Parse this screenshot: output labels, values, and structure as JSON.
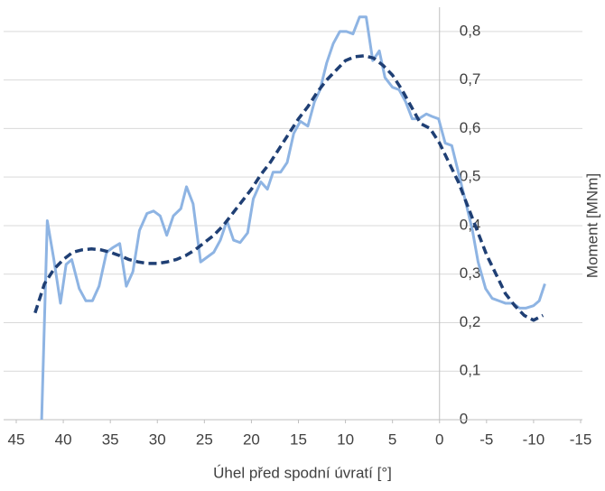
{
  "chart_data": {
    "type": "line",
    "xlabel": "Úhel před spodní úvratí [°]",
    "ylabel": "Moment [MNm]",
    "xlim": [
      45,
      -15
    ],
    "ylim": [
      0,
      0.85
    ],
    "xticks": [
      45,
      40,
      35,
      30,
      25,
      20,
      15,
      10,
      5,
      0,
      -5,
      -10,
      -15
    ],
    "yticks": [
      0,
      {
        "value": 0.1,
        "label": "0,1"
      },
      {
        "value": 0.2,
        "label": "0,2"
      },
      {
        "value": 0.3,
        "label": "0,3"
      },
      {
        "value": 0.4,
        "label": "0,4"
      },
      {
        "value": 0.5,
        "label": "0,5"
      },
      {
        "value": 0.6,
        "label": "0,6"
      },
      {
        "value": 0.7,
        "label": "0,7"
      },
      {
        "value": 0.8,
        "label": "0,8"
      }
    ],
    "grid": true,
    "series": [
      {
        "color": "#8eb4e3",
        "line_style": "solid",
        "x": [
          42.3,
          41.7,
          41.0,
          40.3,
          39.7,
          39.1,
          38.3,
          37.6,
          36.9,
          36.2,
          35.4,
          34.7,
          34.0,
          33.3,
          32.6,
          31.9,
          31.1,
          30.4,
          29.7,
          29.0,
          28.3,
          27.5,
          26.9,
          26.2,
          25.4,
          24.7,
          24.0,
          23.3,
          22.6,
          21.9,
          21.2,
          20.4,
          19.8,
          19.0,
          18.3,
          17.7,
          16.9,
          16.2,
          15.5,
          14.8,
          14.0,
          13.3,
          12.7,
          12.0,
          11.3,
          10.6,
          9.9,
          9.2,
          8.5,
          7.8,
          7.1,
          6.4,
          5.8,
          5.0,
          4.3,
          3.6,
          2.9,
          2.2,
          1.4,
          0.8,
          0.1,
          -0.6,
          -1.3,
          -2.0,
          -2.7,
          -3.5,
          -4.1,
          -4.9,
          -5.6,
          -6.3,
          -7.0,
          -7.8,
          -8.5,
          -9.2,
          -10.0,
          -10.6,
          -11.2
        ],
        "values": [
          0,
          0.41,
          0.33,
          0.24,
          0.32,
          0.33,
          0.27,
          0.245,
          0.245,
          0.275,
          0.345,
          0.355,
          0.363,
          0.275,
          0.305,
          0.39,
          0.425,
          0.43,
          0.42,
          0.38,
          0.42,
          0.435,
          0.48,
          0.445,
          0.325,
          0.335,
          0.345,
          0.37,
          0.41,
          0.37,
          0.365,
          0.385,
          0.455,
          0.49,
          0.475,
          0.51,
          0.51,
          0.53,
          0.59,
          0.615,
          0.605,
          0.655,
          0.68,
          0.735,
          0.775,
          0.8,
          0.8,
          0.795,
          0.83,
          0.83,
          0.74,
          0.76,
          0.705,
          0.685,
          0.68,
          0.655,
          0.62,
          0.62,
          0.63,
          0.625,
          0.62,
          0.57,
          0.565,
          0.51,
          0.455,
          0.39,
          0.325,
          0.27,
          0.25,
          0.245,
          0.24,
          0.24,
          0.23,
          0.23,
          0.235,
          0.245,
          0.28
        ]
      },
      {
        "color": "#1f3f74",
        "line_style": "dashed",
        "x": [
          43,
          42,
          41,
          40,
          39,
          38,
          37,
          36,
          35,
          34,
          33,
          32,
          31,
          30,
          29,
          28,
          27,
          26,
          25,
          24,
          23,
          22,
          21,
          20,
          19,
          18,
          17,
          16,
          15,
          14,
          13,
          12,
          11,
          10,
          9,
          8,
          7,
          6,
          5,
          4,
          3,
          2,
          1,
          0,
          -1,
          -2,
          -3,
          -4,
          -5,
          -6,
          -7,
          -8,
          -9,
          -10,
          -11
        ],
        "values": [
          0.22,
          0.28,
          0.31,
          0.33,
          0.345,
          0.35,
          0.352,
          0.35,
          0.345,
          0.338,
          0.33,
          0.325,
          0.322,
          0.322,
          0.325,
          0.33,
          0.338,
          0.35,
          0.365,
          0.38,
          0.4,
          0.425,
          0.45,
          0.475,
          0.505,
          0.53,
          0.56,
          0.59,
          0.62,
          0.645,
          0.675,
          0.7,
          0.72,
          0.74,
          0.748,
          0.75,
          0.745,
          0.73,
          0.71,
          0.68,
          0.645,
          0.61,
          0.6,
          0.57,
          0.53,
          0.49,
          0.44,
          0.39,
          0.34,
          0.3,
          0.26,
          0.235,
          0.215,
          0.205,
          0.215
        ]
      }
    ]
  }
}
